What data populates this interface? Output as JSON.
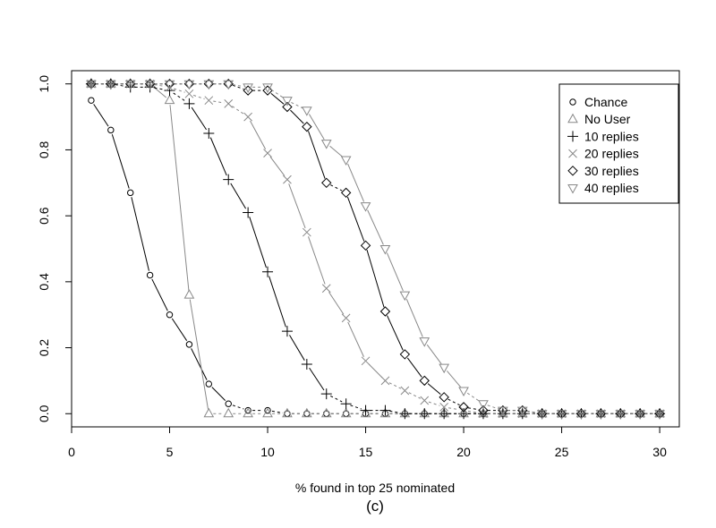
{
  "chart_data": {
    "type": "line",
    "xlabel": "% found in top 25 nominated",
    "caption": "(c)",
    "xlim": [
      0,
      31
    ],
    "ylim": [
      -0.04,
      1.04
    ],
    "x_ticks": [
      0,
      5,
      10,
      15,
      20,
      25,
      30
    ],
    "y_ticks": [
      0.0,
      0.2,
      0.4,
      0.6,
      0.8,
      1.0
    ],
    "x_tick_labels": [
      "0",
      "5",
      "10",
      "15",
      "20",
      "25",
      "30"
    ],
    "y_tick_labels": [
      "0.0",
      "0.2",
      "0.4",
      "0.6",
      "0.8",
      "1.0"
    ],
    "grid": false,
    "legend_position": "top-right",
    "x": [
      1,
      2,
      3,
      4,
      5,
      6,
      7,
      8,
      9,
      10,
      11,
      12,
      13,
      14,
      15,
      16,
      17,
      18,
      19,
      20,
      21,
      22,
      23,
      24,
      25,
      26,
      27,
      28,
      29,
      30
    ],
    "series": [
      {
        "name": "Chance",
        "marker": "circle",
        "color": "#000000",
        "values": [
          0.95,
          0.86,
          0.67,
          0.42,
          0.3,
          0.21,
          0.09,
          0.03,
          0.01,
          0.01,
          0,
          0,
          0,
          0,
          0,
          0,
          0,
          0,
          0,
          0,
          0,
          0,
          0,
          0,
          0,
          0,
          0,
          0,
          0,
          0
        ]
      },
      {
        "name": "No User",
        "marker": "triangle-up",
        "color": "#888888",
        "values": [
          1.0,
          1.0,
          1.0,
          1.0,
          0.95,
          0.36,
          0,
          0,
          0,
          0,
          0,
          0,
          0,
          0,
          0,
          0,
          0,
          0,
          0,
          0,
          0,
          0,
          0,
          0,
          0,
          0,
          0,
          0,
          0,
          0
        ]
      },
      {
        "name": "10 replies",
        "marker": "plus",
        "color": "#000000",
        "values": [
          1.0,
          1.0,
          0.99,
          0.99,
          0.98,
          0.94,
          0.85,
          0.71,
          0.61,
          0.43,
          0.25,
          0.15,
          0.06,
          0.03,
          0.01,
          0.01,
          0,
          0,
          0,
          0,
          0,
          0,
          0,
          0,
          0,
          0,
          0,
          0,
          0,
          0
        ]
      },
      {
        "name": "20 replies",
        "marker": "cross",
        "color": "#888888",
        "values": [
          1.0,
          1.0,
          1.0,
          1.0,
          0.99,
          0.97,
          0.95,
          0.94,
          0.9,
          0.79,
          0.71,
          0.55,
          0.38,
          0.29,
          0.16,
          0.1,
          0.07,
          0.04,
          0.02,
          0.01,
          0,
          0,
          0,
          0,
          0,
          0,
          0,
          0,
          0,
          0
        ]
      },
      {
        "name": "30 replies",
        "marker": "diamond",
        "color": "#000000",
        "values": [
          1.0,
          1.0,
          1.0,
          1.0,
          1.0,
          1.0,
          1.0,
          1.0,
          0.98,
          0.98,
          0.93,
          0.87,
          0.7,
          0.67,
          0.51,
          0.31,
          0.18,
          0.1,
          0.05,
          0.02,
          0.01,
          0.01,
          0.01,
          0,
          0,
          0,
          0,
          0,
          0,
          0
        ]
      },
      {
        "name": "40 replies",
        "marker": "triangle-down",
        "color": "#888888",
        "values": [
          1.0,
          1.0,
          1.0,
          1.0,
          1.0,
          1.0,
          1.0,
          1.0,
          0.99,
          0.99,
          0.95,
          0.92,
          0.82,
          0.77,
          0.63,
          0.5,
          0.36,
          0.22,
          0.14,
          0.07,
          0.03,
          0.01,
          0.01,
          0,
          0,
          0,
          0,
          0,
          0,
          0
        ]
      }
    ]
  }
}
